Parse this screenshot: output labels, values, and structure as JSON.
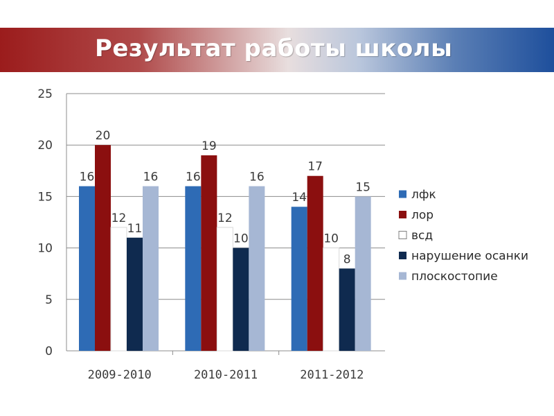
{
  "page": {
    "title": "Результат работы школы"
  },
  "chart_data": {
    "type": "bar",
    "title": "",
    "xlabel": "",
    "ylabel": "",
    "categories": [
      "2009-2010",
      "2010-2011",
      "2011-2012"
    ],
    "ylim": [
      0,
      25
    ],
    "yticks": [
      0,
      5,
      10,
      15,
      20,
      25
    ],
    "grid": true,
    "legend_position": "right",
    "series": [
      {
        "name": "лфк",
        "color": "#2e6bb5",
        "values": [
          16,
          16,
          14
        ]
      },
      {
        "name": "лор",
        "color": "#8b0f0f",
        "values": [
          20,
          19,
          17
        ]
      },
      {
        "name": "всд",
        "color": "#ffffff",
        "values": [
          12,
          12,
          10
        ]
      },
      {
        "name": "нарушение осанки",
        "color": "#0f2a4f",
        "values": [
          11,
          10,
          8
        ]
      },
      {
        "name": "плоскостопие",
        "color": "#a6b7d4",
        "values": [
          16,
          16,
          15
        ]
      }
    ]
  }
}
